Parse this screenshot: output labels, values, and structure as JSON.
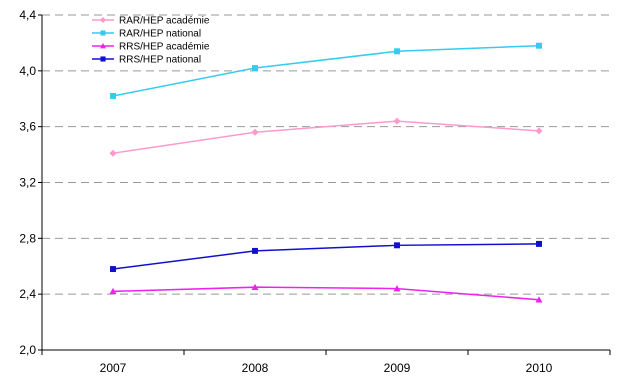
{
  "chart_data": {
    "type": "line",
    "categories": [
      "2007",
      "2008",
      "2009",
      "2010"
    ],
    "ylim": [
      2.0,
      4.4
    ],
    "yticks": [
      "2,0",
      "2,4",
      "2,8",
      "3,2",
      "3,6",
      "4,0",
      "4,4"
    ],
    "grid": true,
    "legend_position": "top-left",
    "series": [
      {
        "name": "RAR/HEP académie",
        "values": [
          3.41,
          3.56,
          3.64,
          3.57
        ],
        "color": "#ff99cc",
        "marker": "diamond"
      },
      {
        "name": "RAR/HEP national",
        "values": [
          3.82,
          4.02,
          4.14,
          4.18
        ],
        "color": "#33ccee",
        "marker": "square"
      },
      {
        "name": "RRS/HEP académie",
        "values": [
          2.42,
          2.45,
          2.44,
          2.36
        ],
        "color": "#ee22ee",
        "marker": "triangle"
      },
      {
        "name": "RRS/HEP national",
        "values": [
          2.58,
          2.71,
          2.75,
          2.76
        ],
        "color": "#1010cc",
        "marker": "square"
      }
    ]
  }
}
